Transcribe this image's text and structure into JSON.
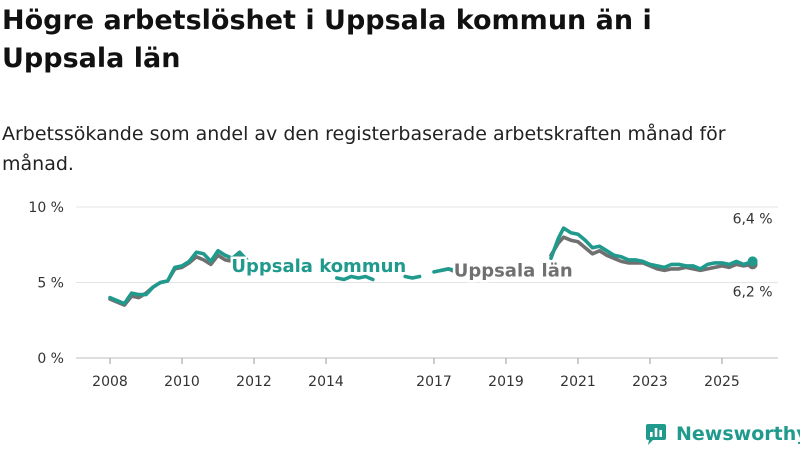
{
  "title": "Högre arbetslöshet i Uppsala kommun än i Uppsala län",
  "subtitle": "Arbetssökande som andel av den registerbaserade arbetskraften månad för månad.",
  "brand": {
    "name": "Newsworthy",
    "icon": "newsworthy-logo-icon",
    "color": "#1f9a8d"
  },
  "chart_data": {
    "type": "line",
    "xlim": [
      2007.6,
      2026.6
    ],
    "ylim": [
      0,
      10
    ],
    "x_ticks": [
      2008,
      2010,
      2012,
      2014,
      2017,
      2019,
      2021,
      2023,
      2025
    ],
    "x_tick_labels": [
      "2008",
      "2010",
      "2012",
      "2014",
      "2017",
      "2019",
      "2021",
      "2023",
      "2025"
    ],
    "y_ticks": [
      0,
      5,
      10
    ],
    "y_tick_labels": [
      "0 %",
      "5 %",
      "10 %"
    ],
    "grid": true,
    "series": [
      {
        "name": "Uppsala län",
        "color": "#707070",
        "end_label": "6,2 %",
        "segments": [
          [
            [
              2008.0,
              3.9
            ],
            [
              2008.2,
              3.7
            ],
            [
              2008.4,
              3.5
            ],
            [
              2008.6,
              4.1
            ],
            [
              2008.8,
              4.0
            ],
            [
              2009.0,
              4.3
            ],
            [
              2009.2,
              4.7
            ],
            [
              2009.4,
              5.0
            ],
            [
              2009.6,
              5.1
            ],
            [
              2009.8,
              5.9
            ],
            [
              2010.0,
              6.0
            ],
            [
              2010.2,
              6.3
            ],
            [
              2010.4,
              6.7
            ],
            [
              2010.6,
              6.5
            ],
            [
              2010.8,
              6.2
            ],
            [
              2011.0,
              6.8
            ],
            [
              2011.2,
              6.5
            ],
            [
              2011.4,
              6.4
            ],
            [
              2011.6,
              6.7
            ],
            [
              2011.8,
              6.3
            ]
          ],
          [
            [
              2017.2,
              5.8
            ],
            [
              2017.4,
              5.9
            ],
            [
              2017.6,
              5.7
            ],
            [
              2017.8,
              5.8
            ],
            [
              2018.0,
              5.8
            ]
          ],
          [
            [
              2020.25,
              6.8
            ],
            [
              2020.45,
              7.6
            ],
            [
              2020.6,
              8.0
            ],
            [
              2020.8,
              7.8
            ],
            [
              2021.0,
              7.7
            ],
            [
              2021.2,
              7.3
            ],
            [
              2021.4,
              6.9
            ],
            [
              2021.6,
              7.1
            ],
            [
              2021.8,
              6.8
            ],
            [
              2022.0,
              6.6
            ],
            [
              2022.2,
              6.4
            ],
            [
              2022.4,
              6.3
            ],
            [
              2022.6,
              6.3
            ],
            [
              2022.8,
              6.3
            ],
            [
              2023.0,
              6.1
            ],
            [
              2023.2,
              5.9
            ],
            [
              2023.4,
              5.8
            ],
            [
              2023.6,
              5.9
            ],
            [
              2023.8,
              5.9
            ],
            [
              2024.0,
              6.0
            ],
            [
              2024.2,
              5.9
            ],
            [
              2024.4,
              5.8
            ],
            [
              2024.6,
              5.9
            ],
            [
              2024.8,
              6.0
            ],
            [
              2025.0,
              6.1
            ],
            [
              2025.2,
              6.0
            ],
            [
              2025.4,
              6.2
            ],
            [
              2025.6,
              6.1
            ],
            [
              2025.85,
              6.2
            ]
          ]
        ]
      },
      {
        "name": "Uppsala kommun",
        "color": "#1f9a8d",
        "end_label": "6,4 %",
        "segments": [
          [
            [
              2008.0,
              4.0
            ],
            [
              2008.2,
              3.8
            ],
            [
              2008.4,
              3.6
            ],
            [
              2008.6,
              4.3
            ],
            [
              2008.8,
              4.2
            ],
            [
              2009.0,
              4.2
            ],
            [
              2009.2,
              4.7
            ],
            [
              2009.4,
              5.0
            ],
            [
              2009.6,
              5.1
            ],
            [
              2009.8,
              6.0
            ],
            [
              2010.0,
              6.1
            ],
            [
              2010.2,
              6.4
            ],
            [
              2010.4,
              7.0
            ],
            [
              2010.6,
              6.9
            ],
            [
              2010.8,
              6.4
            ],
            [
              2011.0,
              7.1
            ],
            [
              2011.2,
              6.8
            ],
            [
              2011.4,
              6.6
            ],
            [
              2011.6,
              7.0
            ],
            [
              2011.8,
              6.5
            ]
          ],
          [
            [
              2014.3,
              5.3
            ],
            [
              2014.5,
              5.2
            ],
            [
              2014.7,
              5.4
            ],
            [
              2014.9,
              5.3
            ],
            [
              2015.1,
              5.4
            ],
            [
              2015.3,
              5.2
            ]
          ],
          [
            [
              2016.2,
              5.4
            ],
            [
              2016.4,
              5.3
            ],
            [
              2016.6,
              5.4
            ]
          ],
          [
            [
              2017.0,
              5.7
            ],
            [
              2017.2,
              5.8
            ],
            [
              2017.4,
              5.9
            ],
            [
              2017.6,
              5.8
            ],
            [
              2017.8,
              5.7
            ],
            [
              2018.0,
              6.0
            ],
            [
              2018.2,
              5.9
            ],
            [
              2018.4,
              6.0
            ]
          ],
          [
            [
              2020.25,
              6.6
            ],
            [
              2020.45,
              7.9
            ],
            [
              2020.6,
              8.6
            ],
            [
              2020.8,
              8.3
            ],
            [
              2021.0,
              8.2
            ],
            [
              2021.2,
              7.8
            ],
            [
              2021.4,
              7.3
            ],
            [
              2021.6,
              7.4
            ],
            [
              2021.8,
              7.1
            ],
            [
              2022.0,
              6.8
            ],
            [
              2022.2,
              6.7
            ],
            [
              2022.4,
              6.5
            ],
            [
              2022.6,
              6.5
            ],
            [
              2022.8,
              6.4
            ],
            [
              2023.0,
              6.2
            ],
            [
              2023.2,
              6.1
            ],
            [
              2023.4,
              6.0
            ],
            [
              2023.6,
              6.2
            ],
            [
              2023.8,
              6.2
            ],
            [
              2024.0,
              6.1
            ],
            [
              2024.2,
              6.1
            ],
            [
              2024.4,
              5.9
            ],
            [
              2024.6,
              6.2
            ],
            [
              2024.8,
              6.3
            ],
            [
              2025.0,
              6.3
            ],
            [
              2025.2,
              6.2
            ],
            [
              2025.4,
              6.4
            ],
            [
              2025.6,
              6.2
            ],
            [
              2025.85,
              6.4
            ]
          ]
        ]
      }
    ],
    "annotations": [
      {
        "text": "Uppsala kommun",
        "series": "Uppsala kommun",
        "x": 2013.8,
        "y": 6.1
      },
      {
        "text": "Uppsala län",
        "series": "Uppsala län",
        "x": 2019.2,
        "y": 5.8
      }
    ]
  }
}
